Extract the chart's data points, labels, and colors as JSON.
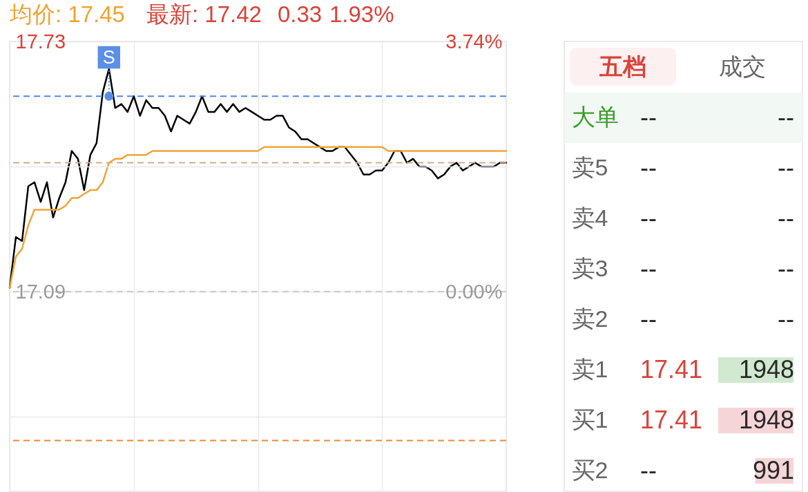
{
  "chart_data": [
    {
      "type": "line",
      "annotations": [
        "均价: 17.45",
        "最新: 17.42",
        "0.33",
        "1.93%"
      ],
      "categories": [
        null,
        null,
        null,
        null,
        null,
        null,
        null,
        null,
        null,
        null,
        null,
        null,
        null,
        null,
        null,
        null,
        null,
        null,
        null,
        null,
        null,
        null,
        null,
        null,
        null,
        null,
        null,
        null,
        null,
        null,
        null,
        null,
        null,
        null,
        null,
        null,
        null,
        null,
        null,
        null,
        null,
        null,
        null,
        null,
        null,
        null,
        null,
        null,
        null,
        null,
        null,
        null,
        null,
        null,
        null,
        null,
        null,
        null,
        null,
        null,
        null,
        null,
        null,
        null,
        null,
        null,
        null,
        null,
        null,
        null,
        null,
        null,
        null,
        null,
        null,
        null,
        null,
        null,
        null,
        null,
        null
      ],
      "series": [
        {
          "color": "#000000",
          "values": [
            17.1,
            17.23,
            17.22,
            17.36,
            17.37,
            17.32,
            17.37,
            17.28,
            17.33,
            17.37,
            17.45,
            17.43,
            17.35,
            17.44,
            17.47,
            17.6,
            17.66,
            17.56,
            17.57,
            17.55,
            17.59,
            17.54,
            17.58,
            17.56,
            17.56,
            17.54,
            17.5,
            17.54,
            17.53,
            17.52,
            17.55,
            17.59,
            17.55,
            17.55,
            17.57,
            17.55,
            17.57,
            17.55,
            17.56,
            17.55,
            17.54,
            17.53,
            17.53,
            17.54,
            17.54,
            17.51,
            17.5,
            17.48,
            17.48,
            17.47,
            17.46,
            17.45,
            17.45,
            17.46,
            17.46,
            17.44,
            17.42,
            17.39,
            17.39,
            17.4,
            17.4,
            17.42,
            17.45,
            17.45,
            17.42,
            17.43,
            17.41,
            17.41,
            17.4,
            17.38,
            17.39,
            17.41,
            17.42,
            17.4,
            17.41,
            17.42,
            17.41,
            17.41,
            17.41,
            17.42,
            17.42
          ]
        },
        {
          "color": "#f0a43a",
          "values": [
            17.1,
            17.18,
            17.2,
            17.26,
            17.3,
            17.3,
            17.3,
            17.3,
            17.3,
            17.31,
            17.33,
            17.33,
            17.34,
            17.35,
            17.35,
            17.37,
            17.42,
            17.43,
            17.43,
            17.44,
            17.44,
            17.44,
            17.44,
            17.45,
            17.45,
            17.45,
            17.45,
            17.45,
            17.45,
            17.45,
            17.45,
            17.45,
            17.45,
            17.45,
            17.45,
            17.45,
            17.45,
            17.45,
            17.45,
            17.45,
            17.45,
            17.46,
            17.46,
            17.46,
            17.46,
            17.46,
            17.46,
            17.46,
            17.46,
            17.46,
            17.46,
            17.46,
            17.46,
            17.46,
            17.46,
            17.46,
            17.46,
            17.46,
            17.46,
            17.46,
            17.46,
            17.45,
            17.45,
            17.45,
            17.45,
            17.45,
            17.45,
            17.45,
            17.45,
            17.45,
            17.45,
            17.45,
            17.45,
            17.45,
            17.45,
            17.45,
            17.45,
            17.45,
            17.45,
            17.45,
            17.45
          ]
        },
        {
          "type": "scatter",
          "name": "S",
          "color": "#5b8fe6",
          "values": [
            null,
            null,
            null,
            null,
            null,
            null,
            null,
            null,
            null,
            null,
            null,
            null,
            null,
            null,
            null,
            null,
            17.59,
            null,
            null,
            null,
            null,
            null,
            null,
            null,
            null,
            null,
            null,
            null,
            null,
            null,
            null,
            null,
            null,
            null,
            null,
            null,
            null,
            null,
            null,
            null,
            null,
            null,
            null,
            null,
            null,
            null,
            null,
            null,
            null,
            null,
            null,
            null,
            null,
            null,
            null,
            null,
            null,
            null,
            null,
            null,
            null,
            null,
            null,
            null,
            null,
            null,
            null,
            null,
            null,
            null,
            null,
            null,
            null,
            null,
            null,
            null,
            null,
            null,
            null,
            null,
            null
          ]
        }
      ],
      "ylim": [
        16.58,
        17.73
      ],
      "yticks": [
        17.73,
        {
          "value": 17.41,
          "label": null
        },
        17.09,
        {
          "value": 16.77,
          "label": null
        }
      ],
      "y2lim": [
        -2.98,
        3.74
      ],
      "y2ticks": [
        {
          "value": 3.74,
          "label": "3.74%"
        },
        {
          "value": 0,
          "label": "0.00%"
        }
      ],
      "grid": true,
      "ref_lines": [
        {
          "axis": "y",
          "value": 17.59,
          "color": "#4f86e3",
          "line_style": "dashed"
        },
        {
          "axis": "y",
          "value": 17.42,
          "color": "#d2ad8a",
          "line_style": "dashed"
        },
        {
          "axis": "y",
          "value": 17.09,
          "color": "#8a8a8a",
          "line_style": "dashed"
        },
        {
          "axis": "y",
          "value": 16.71,
          "color": "#ec8a32",
          "line_style": "dashed"
        }
      ]
    },
    {
      "type": "bar",
      "orientation": "horizontal",
      "annotations": [
        "五档",
        "成交"
      ],
      "categories": [
        "大单",
        "卖5",
        "卖4",
        "卖3",
        "卖2",
        "卖1",
        "买1",
        "买2"
      ],
      "y2_categories": [
        "--",
        "--",
        "--",
        "--",
        "--",
        "17.41",
        "17.41",
        "--"
      ],
      "values": [
        null,
        null,
        null,
        null,
        null,
        1948,
        1948,
        991
      ],
      "colors": [
        null,
        null,
        null,
        null,
        null,
        "#d0e9d0",
        "#f6d5d8",
        "#f6d5d8"
      ],
      "value_labels": [
        "--",
        "--",
        "--",
        "--",
        "--",
        "1948",
        "1948",
        "991"
      ]
    }
  ]
}
